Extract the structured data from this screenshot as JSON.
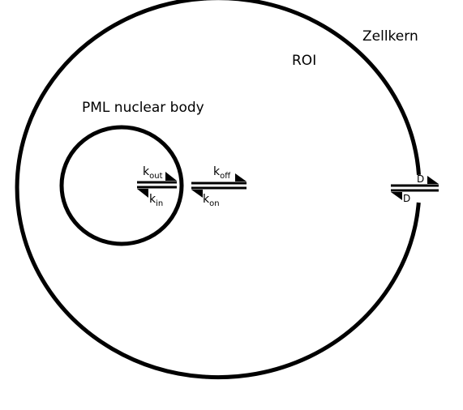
{
  "labels": {
    "nucleus": "Zellkern",
    "roi": "ROI",
    "body": "PML nuclear body"
  },
  "rates": {
    "k_out": {
      "base": "k",
      "sub": "out"
    },
    "k_in": {
      "base": "k",
      "sub": "in"
    },
    "k_off": {
      "base": "k",
      "sub": "off"
    },
    "k_on": {
      "base": "k",
      "sub": "on"
    },
    "d_forward": "D",
    "d_backward": "D"
  },
  "colors": {
    "stroke": "#000000",
    "background": "#ffffff"
  }
}
